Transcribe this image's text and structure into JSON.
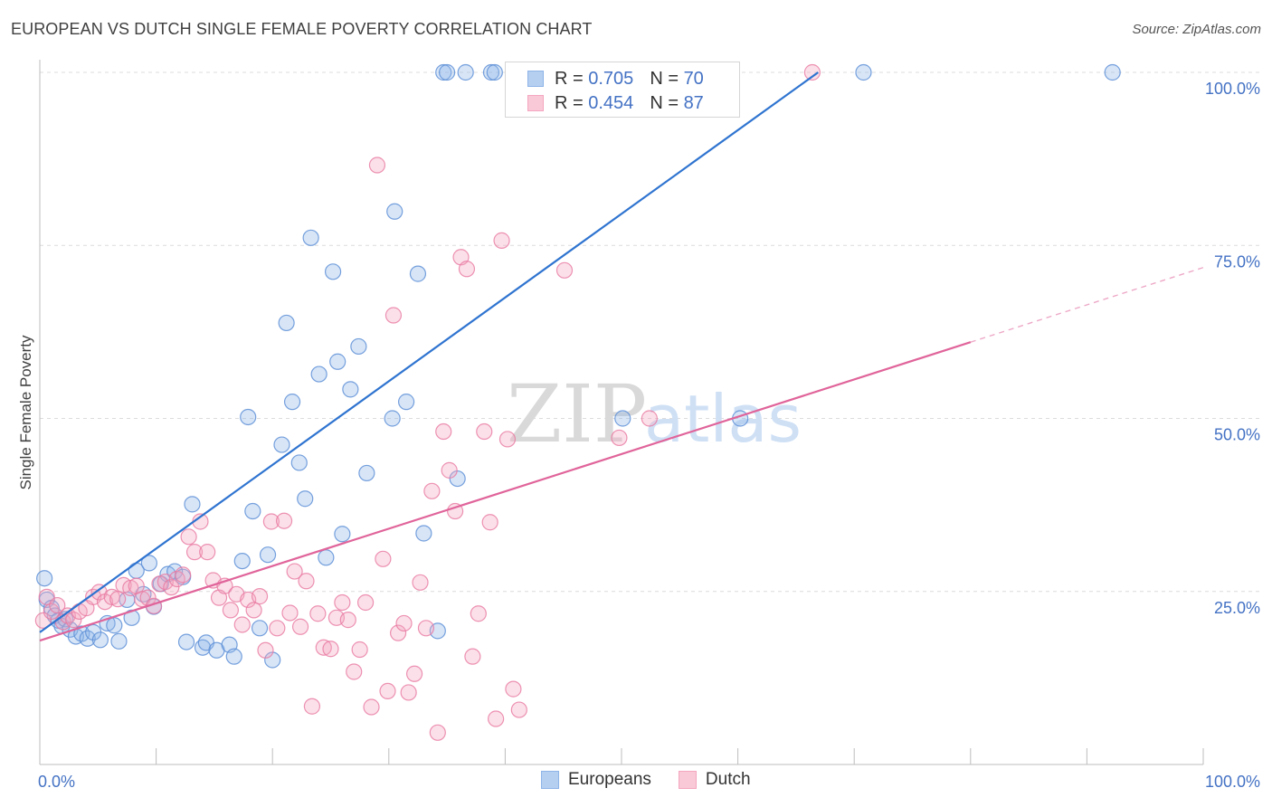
{
  "header": {
    "title": "EUROPEAN VS DUTCH SINGLE FEMALE POVERTY CORRELATION CHART",
    "source": "Source: ZipAtlas.com"
  },
  "legend": {
    "r_label": "R =",
    "n_label": "N =",
    "rows": [
      {
        "r": "0.705",
        "n": "70"
      },
      {
        "r": "0.454",
        "n": "87"
      }
    ]
  },
  "watermark": {
    "zip": "ZIP",
    "atlas": "atlas"
  },
  "colors": {
    "europeans": "#8db4e8",
    "europeans_line": "#2f74d0",
    "dutch": "#f4a6bf",
    "dutch_line": "#e0649a",
    "tick_label": "#4472c4",
    "grid": "#dcdcdc"
  },
  "chart_data": {
    "type": "scatter",
    "title": "EUROPEAN VS DUTCH SINGLE FEMALE POVERTY CORRELATION CHART",
    "xlabel": "",
    "ylabel": "Single Female Poverty",
    "xlim": [
      0,
      100
    ],
    "ylim": [
      0,
      100
    ],
    "x_tick_labels": [
      "0.0%",
      "100.0%"
    ],
    "y_tick_labels": [
      "25.0%",
      "50.0%",
      "75.0%",
      "100.0%"
    ],
    "y_ticks": [
      25,
      50,
      75,
      100
    ],
    "grid": true,
    "legend_position": "top-center",
    "series": [
      {
        "name": "Europeans",
        "color": "#8db4e8",
        "r": 0.705,
        "n": 70,
        "trend": {
          "x": [
            0,
            66.9
          ],
          "y": [
            19.1,
            100
          ]
        },
        "points": [
          [
            0.4,
            26.9
          ],
          [
            0.6,
            23.8
          ],
          [
            1.0,
            22.6
          ],
          [
            1.3,
            21.5
          ],
          [
            1.6,
            20.8
          ],
          [
            1.9,
            20.0
          ],
          [
            2.2,
            21.0
          ],
          [
            2.6,
            19.5
          ],
          [
            3.1,
            18.5
          ],
          [
            3.6,
            18.9
          ],
          [
            4.1,
            18.2
          ],
          [
            4.6,
            19.1
          ],
          [
            5.2,
            18.0
          ],
          [
            5.8,
            20.4
          ],
          [
            6.4,
            20.1
          ],
          [
            6.8,
            17.8
          ],
          [
            7.5,
            23.8
          ],
          [
            7.9,
            21.2
          ],
          [
            8.3,
            28.0
          ],
          [
            8.9,
            24.6
          ],
          [
            9.4,
            29.1
          ],
          [
            9.8,
            22.8
          ],
          [
            10.4,
            26.1
          ],
          [
            11.0,
            27.5
          ],
          [
            11.6,
            27.9
          ],
          [
            12.3,
            27.1
          ],
          [
            12.6,
            17.7
          ],
          [
            13.1,
            37.6
          ],
          [
            14.0,
            16.9
          ],
          [
            14.3,
            17.6
          ],
          [
            15.2,
            16.5
          ],
          [
            16.3,
            17.3
          ],
          [
            16.7,
            15.6
          ],
          [
            17.4,
            29.4
          ],
          [
            17.9,
            50.2
          ],
          [
            18.3,
            36.6
          ],
          [
            18.9,
            19.7
          ],
          [
            19.6,
            30.3
          ],
          [
            20.0,
            15.1
          ],
          [
            20.8,
            46.2
          ],
          [
            21.2,
            63.8
          ],
          [
            21.7,
            52.4
          ],
          [
            22.3,
            43.6
          ],
          [
            22.8,
            38.4
          ],
          [
            23.3,
            76.1
          ],
          [
            24.0,
            56.4
          ],
          [
            24.6,
            29.9
          ],
          [
            25.2,
            71.2
          ],
          [
            25.6,
            58.2
          ],
          [
            26.0,
            33.3
          ],
          [
            26.7,
            54.2
          ],
          [
            27.4,
            60.4
          ],
          [
            28.1,
            42.1
          ],
          [
            30.3,
            50.0
          ],
          [
            30.5,
            79.9
          ],
          [
            31.5,
            52.4
          ],
          [
            32.5,
            70.9
          ],
          [
            33.0,
            33.4
          ],
          [
            34.2,
            19.3
          ],
          [
            34.7,
            100
          ],
          [
            35.0,
            100
          ],
          [
            35.9,
            41.3
          ],
          [
            36.6,
            100
          ],
          [
            38.8,
            100
          ],
          [
            39.1,
            100
          ],
          [
            41.4,
            100
          ],
          [
            50.1,
            50.0
          ],
          [
            60.2,
            50.0
          ],
          [
            70.8,
            100
          ],
          [
            92.2,
            100
          ]
        ]
      },
      {
        "name": "Dutch",
        "color": "#f4a6bf",
        "r": 0.454,
        "n": 87,
        "trend": {
          "x": [
            0,
            100
          ],
          "y": [
            17.9,
            71.8
          ]
        },
        "points": [
          [
            0.3,
            20.8
          ],
          [
            0.6,
            24.2
          ],
          [
            1.0,
            22.1
          ],
          [
            1.5,
            23.0
          ],
          [
            2.0,
            20.6
          ],
          [
            2.4,
            21.5
          ],
          [
            2.9,
            20.9
          ],
          [
            3.4,
            22.1
          ],
          [
            4.0,
            22.6
          ],
          [
            4.6,
            24.2
          ],
          [
            5.1,
            24.9
          ],
          [
            5.6,
            23.5
          ],
          [
            6.2,
            24.2
          ],
          [
            6.7,
            23.9
          ],
          [
            7.2,
            25.9
          ],
          [
            7.8,
            25.5
          ],
          [
            8.3,
            25.8
          ],
          [
            8.8,
            23.9
          ],
          [
            9.3,
            24.1
          ],
          [
            9.8,
            22.9
          ],
          [
            10.3,
            26.1
          ],
          [
            10.8,
            26.4
          ],
          [
            11.3,
            25.6
          ],
          [
            11.8,
            26.8
          ],
          [
            12.3,
            27.4
          ],
          [
            12.8,
            32.9
          ],
          [
            13.3,
            30.7
          ],
          [
            13.8,
            35.1
          ],
          [
            14.4,
            30.7
          ],
          [
            14.9,
            26.6
          ],
          [
            15.4,
            24.1
          ],
          [
            15.9,
            25.8
          ],
          [
            16.4,
            22.3
          ],
          [
            16.9,
            24.6
          ],
          [
            17.4,
            20.2
          ],
          [
            17.9,
            23.8
          ],
          [
            18.4,
            22.3
          ],
          [
            18.9,
            24.3
          ],
          [
            19.4,
            16.5
          ],
          [
            19.9,
            35.1
          ],
          [
            20.4,
            19.7
          ],
          [
            21.0,
            35.2
          ],
          [
            21.5,
            21.9
          ],
          [
            21.9,
            27.9
          ],
          [
            22.4,
            19.9
          ],
          [
            22.9,
            26.5
          ],
          [
            23.4,
            8.4
          ],
          [
            23.9,
            21.8
          ],
          [
            24.4,
            16.9
          ],
          [
            25.0,
            16.7
          ],
          [
            25.5,
            21.2
          ],
          [
            26.0,
            23.4
          ],
          [
            26.5,
            20.9
          ],
          [
            27.0,
            13.4
          ],
          [
            27.5,
            16.6
          ],
          [
            28.0,
            23.4
          ],
          [
            28.5,
            8.3
          ],
          [
            29.0,
            86.6
          ],
          [
            29.5,
            29.7
          ],
          [
            29.9,
            10.6
          ],
          [
            30.4,
            64.9
          ],
          [
            30.8,
            19.0
          ],
          [
            31.3,
            20.4
          ],
          [
            31.7,
            10.4
          ],
          [
            32.2,
            13.1
          ],
          [
            32.7,
            26.3
          ],
          [
            33.2,
            19.7
          ],
          [
            33.7,
            39.5
          ],
          [
            34.2,
            4.6
          ],
          [
            34.7,
            48.1
          ],
          [
            35.2,
            42.5
          ],
          [
            35.7,
            36.6
          ],
          [
            36.2,
            73.3
          ],
          [
            36.7,
            71.6
          ],
          [
            37.2,
            15.6
          ],
          [
            37.7,
            21.8
          ],
          [
            38.2,
            48.1
          ],
          [
            38.7,
            35.0
          ],
          [
            39.2,
            6.6
          ],
          [
            39.7,
            75.7
          ],
          [
            40.2,
            47.0
          ],
          [
            40.7,
            10.9
          ],
          [
            41.2,
            7.9
          ],
          [
            45.1,
            71.4
          ],
          [
            49.8,
            47.2
          ],
          [
            52.4,
            50.0
          ],
          [
            66.4,
            100
          ]
        ]
      }
    ]
  },
  "bottom_legend": {
    "items": [
      {
        "label": "Europeans"
      },
      {
        "label": "Dutch"
      }
    ]
  }
}
